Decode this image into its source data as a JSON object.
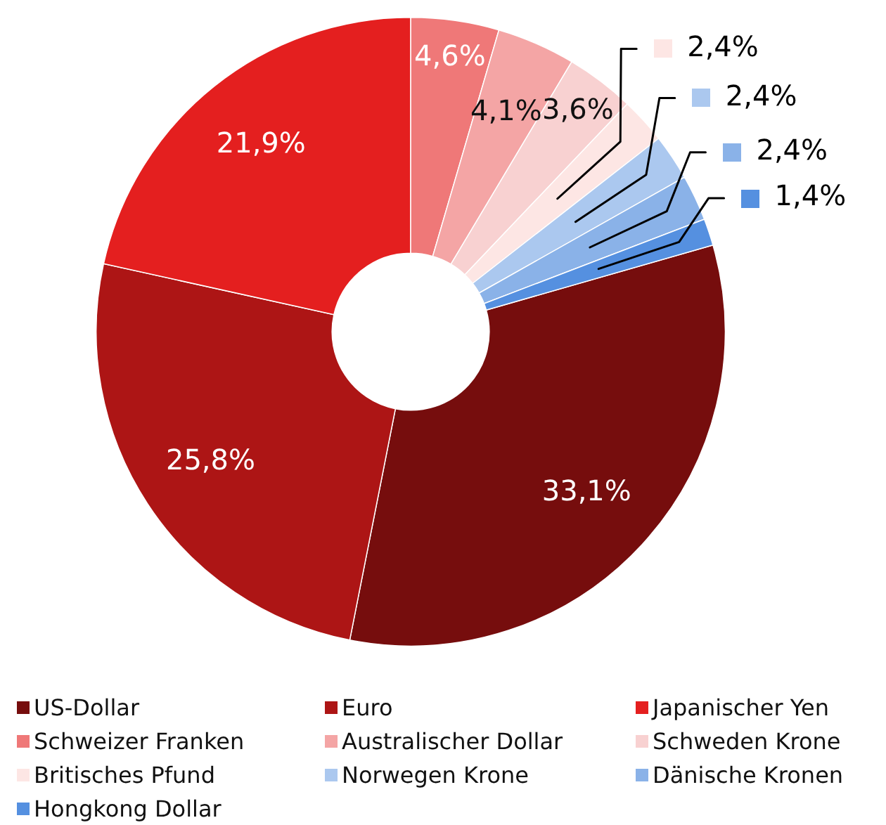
{
  "chart_data": {
    "type": "donut",
    "categories": [
      "US-Dollar",
      "Euro",
      "Japanischer Yen",
      "Schweizer Franken",
      "Australischer Dollar",
      "Schweden Krone",
      "Britisches Pfund",
      "Norwegen Krone",
      "Dänische Kronen",
      "Hongkong Dollar"
    ],
    "values": [
      33.1,
      25.8,
      21.9,
      4.6,
      4.1,
      3.6,
      2.4,
      2.4,
      2.4,
      1.4
    ],
    "colors": [
      "#760d0d",
      "#ad1515",
      "#e41f1f",
      "#ef7878",
      "#f4a5a5",
      "#f8d1d1",
      "#fde6e4",
      "#abc8ef",
      "#8ab2e8",
      "#5590e0"
    ],
    "value_labels": [
      "33,1%",
      "25,8%",
      "21,9%",
      "4,6%",
      "4,1%",
      "3,6%",
      "2,4%",
      "2,4%",
      "2,4%",
      "1,4%"
    ],
    "legend": "bottom"
  }
}
